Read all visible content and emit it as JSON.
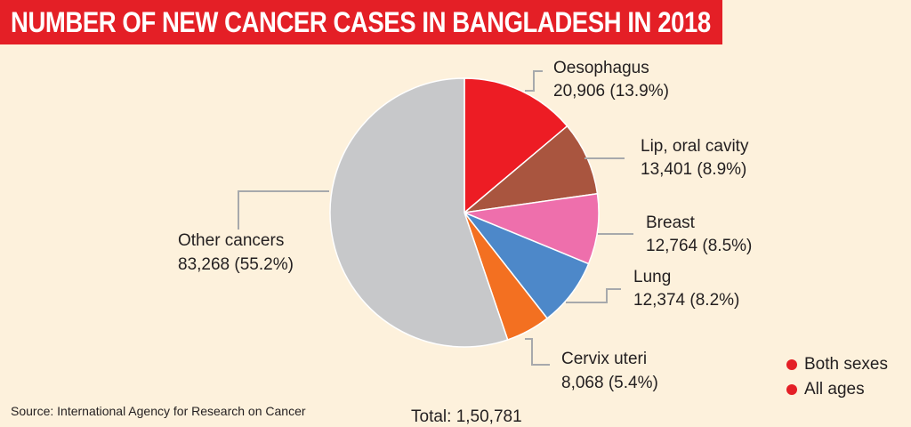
{
  "title": "NUMBER OF NEW CANCER CASES IN BANGLADESH IN 2018",
  "source": "Source: International Agency for Research on Cancer",
  "total_label": "Total: 1,50,781",
  "legend": [
    {
      "label": "Both sexes",
      "color": "#e41f26"
    },
    {
      "label": "All ages",
      "color": "#e41f26"
    }
  ],
  "colors": {
    "title_band": "#e41f26",
    "background": "#fdf1dc",
    "leader_line": "#a7a9ac"
  },
  "chart_data": {
    "type": "pie",
    "total": 150781,
    "slices": [
      {
        "name": "Oesophagus",
        "value": 20906,
        "percent": 13.9,
        "value_label": "20,906 (13.9%)",
        "color": "#ed1c24"
      },
      {
        "name": "Lip, oral cavity",
        "value": 13401,
        "percent": 8.9,
        "value_label": "13,401 (8.9%)",
        "color": "#a9553f"
      },
      {
        "name": "Breast",
        "value": 12764,
        "percent": 8.5,
        "value_label": "12,764 (8.5%)",
        "color": "#ee6fac"
      },
      {
        "name": "Lung",
        "value": 12374,
        "percent": 8.2,
        "value_label": "12,374 (8.2%)",
        "color": "#4d88c9"
      },
      {
        "name": "Cervix uteri",
        "value": 8068,
        "percent": 5.4,
        "value_label": "8,068 (5.4%)",
        "color": "#f37021"
      },
      {
        "name": "Other cancers",
        "value": 83268,
        "percent": 55.2,
        "value_label": "83,268 (55.2%)",
        "color": "#c7c8ca"
      }
    ]
  }
}
